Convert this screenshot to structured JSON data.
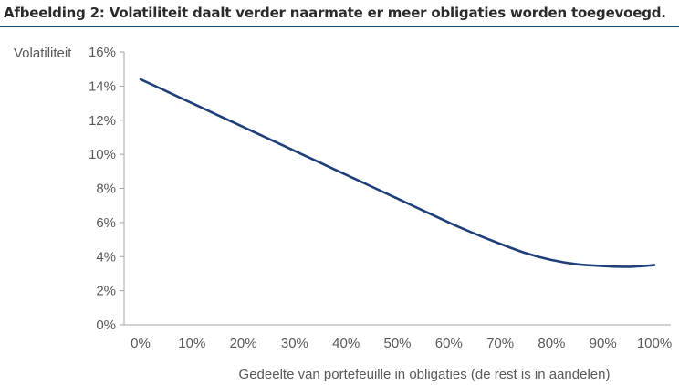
{
  "figure": {
    "title": "Afbeelding 2: Volatiliteit daalt verder naarmate er meer obligaties worden toegevoegd."
  },
  "chart_data": {
    "type": "line",
    "title": "",
    "xlabel": "Gedeelte van portefeuille in obligaties (de rest is in aandelen)",
    "ylabel": "Volatiliteit",
    "x_ticks": [
      "0%",
      "10%",
      "20%",
      "30%",
      "40%",
      "50%",
      "60%",
      "70%",
      "80%",
      "90%",
      "100%"
    ],
    "y_ticks": [
      "0%",
      "2%",
      "4%",
      "6%",
      "8%",
      "10%",
      "12%",
      "14%",
      "16%"
    ],
    "xlim": [
      0,
      100
    ],
    "ylim": [
      0,
      16
    ],
    "grid": false,
    "series": [
      {
        "color": "#1f3f7a",
        "x": [
          0,
          5,
          10,
          15,
          20,
          25,
          30,
          35,
          40,
          45,
          50,
          55,
          60,
          65,
          70,
          75,
          80,
          85,
          90,
          95,
          100
        ],
        "y": [
          14.4,
          13.7,
          13.0,
          12.3,
          11.6,
          10.9,
          10.2,
          9.5,
          8.8,
          8.1,
          7.4,
          6.7,
          6.0,
          5.35,
          4.75,
          4.2,
          3.8,
          3.55,
          3.45,
          3.4,
          3.5
        ]
      }
    ]
  }
}
